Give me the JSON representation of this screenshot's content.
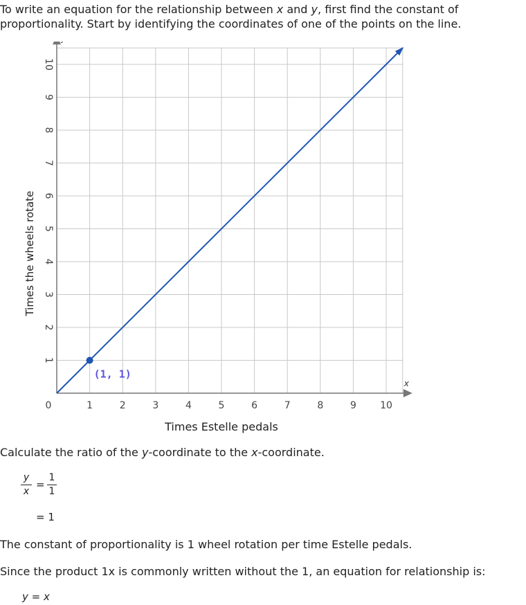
{
  "intro": {
    "part1": "To write an equation for the relationship between ",
    "x": "x",
    "part2": " and ",
    "y": "y",
    "part3": ", first find the constant of proportionality. Start by identifying the coordinates of one of the points on the line."
  },
  "chart_data": {
    "type": "line",
    "xlabel": "Times Estelle pedals",
    "ylabel": "Times the wheels rotate",
    "x_axis_var": "x",
    "y_axis_var": "y",
    "xlim": [
      0,
      10.5
    ],
    "ylim": [
      0,
      10.5
    ],
    "xticks": [
      0,
      1,
      2,
      3,
      4,
      5,
      6,
      7,
      8,
      9,
      10
    ],
    "yticks": [
      1,
      2,
      3,
      4,
      5,
      6,
      7,
      8,
      9,
      10
    ],
    "grid": true,
    "series": [
      {
        "x": [
          0,
          10.5
        ],
        "y": [
          0,
          10.5
        ],
        "color": "#1f56b3"
      }
    ],
    "highlight_point": {
      "x": 1,
      "y": 1,
      "label": "(1, 1)",
      "color": "#1f56b3",
      "label_color": "#5a55e0"
    }
  },
  "ratio_prompt": {
    "part1": "Calculate the ratio of the ",
    "y": "y",
    "part2": "-coordinate to the ",
    "x": "x",
    "part3": "-coordinate."
  },
  "ratio": {
    "lhs_num": "y",
    "lhs_den": "x",
    "eq": "=",
    "rhs_num": "1",
    "rhs_den": "1",
    "result": "= 1"
  },
  "constant_text": "The constant of proportionality is 1 wheel rotation per time Estelle pedals.",
  "since_text": "Since the product 1x is commonly written without the 1, an equation for relationship is:",
  "final_equation": {
    "lhs": "y",
    "eq": " = ",
    "rhs": "x"
  }
}
